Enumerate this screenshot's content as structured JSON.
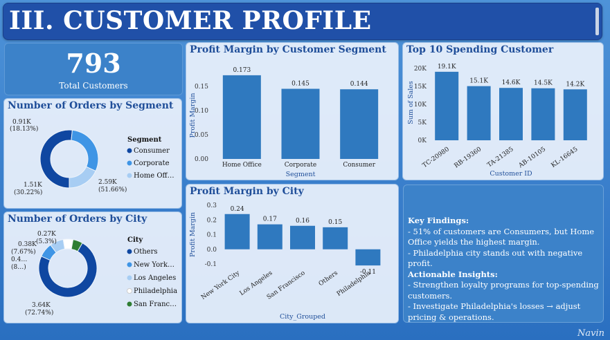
{
  "header": {
    "title": "III. CUSTOMER PROFILE"
  },
  "kpi": {
    "value": "793",
    "label": "Total Customers"
  },
  "charts": {
    "orders_by_segment": {
      "title": "Number of Orders by Segment",
      "legend_title": "Segment",
      "legend": [
        "Consumer",
        "Corporate",
        "Home Off…"
      ],
      "labels": [
        {
          "value": "2.59K",
          "pct": "(51.66%)"
        },
        {
          "value": "1.51K",
          "pct": "(30.22%)"
        },
        {
          "value": "0.91K",
          "pct": "(18.13%)"
        }
      ]
    },
    "orders_by_city": {
      "title": "Number of Orders by City",
      "legend_title": "City",
      "legend": [
        "Others",
        "New York…",
        "Los Angeles",
        "Philadelphia",
        "San Franc…"
      ],
      "labels": [
        {
          "value": "3.64K",
          "pct": "(72.74%)"
        },
        {
          "value": "0.38K",
          "pct": "(7.67%)"
        },
        {
          "value": "0.4…",
          "pct": "(8…)"
        },
        {
          "value": "0.27K",
          "pct": "(5.3%)"
        }
      ]
    },
    "margin_by_segment": {
      "title": "Profit Margin by Customer Segment"
    },
    "top10": {
      "title": "Top 10 Spending Customer"
    },
    "margin_by_city": {
      "title": "Profit Margin by City"
    }
  },
  "insights": {
    "h1": "Key Findings:",
    "f1": "- 51% of customers are Consumers, but Home Office yields the highest margin.",
    "f2": "- Philadelphia city stands out with negative profit.",
    "h2": "Actionable Insights:",
    "a1": "- Strengthen loyalty programs for top-spending customers.",
    "a2": "- Investigate Philadelphia's losses → adjust pricing & operations."
  },
  "watermark": "Navin",
  "colors": {
    "dark_blue": "#0f47a1",
    "mid_blue": "#3f95e5",
    "light_blue": "#a7cdf3",
    "white": "#ffffff",
    "green": "#2e7d32",
    "bar": "#2f79bf"
  },
  "chart_data": [
    {
      "type": "pie",
      "title": "Number of Orders by Segment",
      "categories": [
        "Consumer",
        "Corporate",
        "Home Office"
      ],
      "values": [
        2590,
        1510,
        910
      ],
      "percent": [
        51.66,
        30.22,
        18.13
      ],
      "colors": [
        "#0f47a1",
        "#3f95e5",
        "#a7cdf3"
      ],
      "legend": "right"
    },
    {
      "type": "pie",
      "title": "Number of Orders by City",
      "categories": [
        "Others",
        "New York City",
        "Los Angeles",
        "Philadelphia",
        "San Francisco"
      ],
      "values": [
        3640,
        400,
        380,
        270,
        270
      ],
      "percent": [
        72.74,
        8.0,
        7.67,
        5.3,
        5.3
      ],
      "colors": [
        "#0f47a1",
        "#3f95e5",
        "#a7cdf3",
        "#ffffff",
        "#2e7d32"
      ],
      "legend": "right"
    },
    {
      "type": "bar",
      "title": "Profit Margin by Customer Segment",
      "categories": [
        "Home Office",
        "Corporate",
        "Consumer"
      ],
      "values": [
        0.173,
        0.145,
        0.144
      ],
      "labels": [
        "0.173",
        "0.145",
        "0.144"
      ],
      "xlabel": "Segment",
      "ylabel": "Profit Margin",
      "ylim": [
        0,
        0.18
      ],
      "yticks": [
        "0.00",
        "0.05",
        "0.10",
        "0.15"
      ],
      "ytick_values": [
        0,
        0.05,
        0.1,
        0.15
      ]
    },
    {
      "type": "bar",
      "title": "Top 10 Spending Customer",
      "categories": [
        "TC-20980",
        "RB-19360",
        "TA-21385",
        "AB-10105",
        "KL-16645"
      ],
      "values": [
        19100,
        15100,
        14600,
        14500,
        14200
      ],
      "labels": [
        "19.1K",
        "15.1K",
        "14.6K",
        "14.5K",
        "14.2K"
      ],
      "xlabel": "Customer ID",
      "ylabel": "Sum of Sales",
      "ylim": [
        0,
        21000
      ],
      "yticks": [
        "0K",
        "5K",
        "10K",
        "15K",
        "20K"
      ],
      "ytick_values": [
        0,
        5000,
        10000,
        15000,
        20000
      ]
    },
    {
      "type": "bar",
      "title": "Profit Margin by City",
      "categories": [
        "New York City",
        "Los Angeles",
        "San Francisco",
        "Others",
        "Philadelphia"
      ],
      "values": [
        0.24,
        0.17,
        0.16,
        0.15,
        -0.11
      ],
      "labels": [
        "0.24",
        "0.17",
        "0.16",
        "0.15",
        "-0.11"
      ],
      "xlabel": "City_Grouped",
      "ylabel": "Profit Margin",
      "ylim": [
        -0.1,
        0.3
      ],
      "yticks": [
        "-0.1",
        "0.0",
        "0.1",
        "0.2",
        "0.3"
      ],
      "ytick_values": [
        -0.1,
        0,
        0.1,
        0.2,
        0.3
      ]
    }
  ]
}
